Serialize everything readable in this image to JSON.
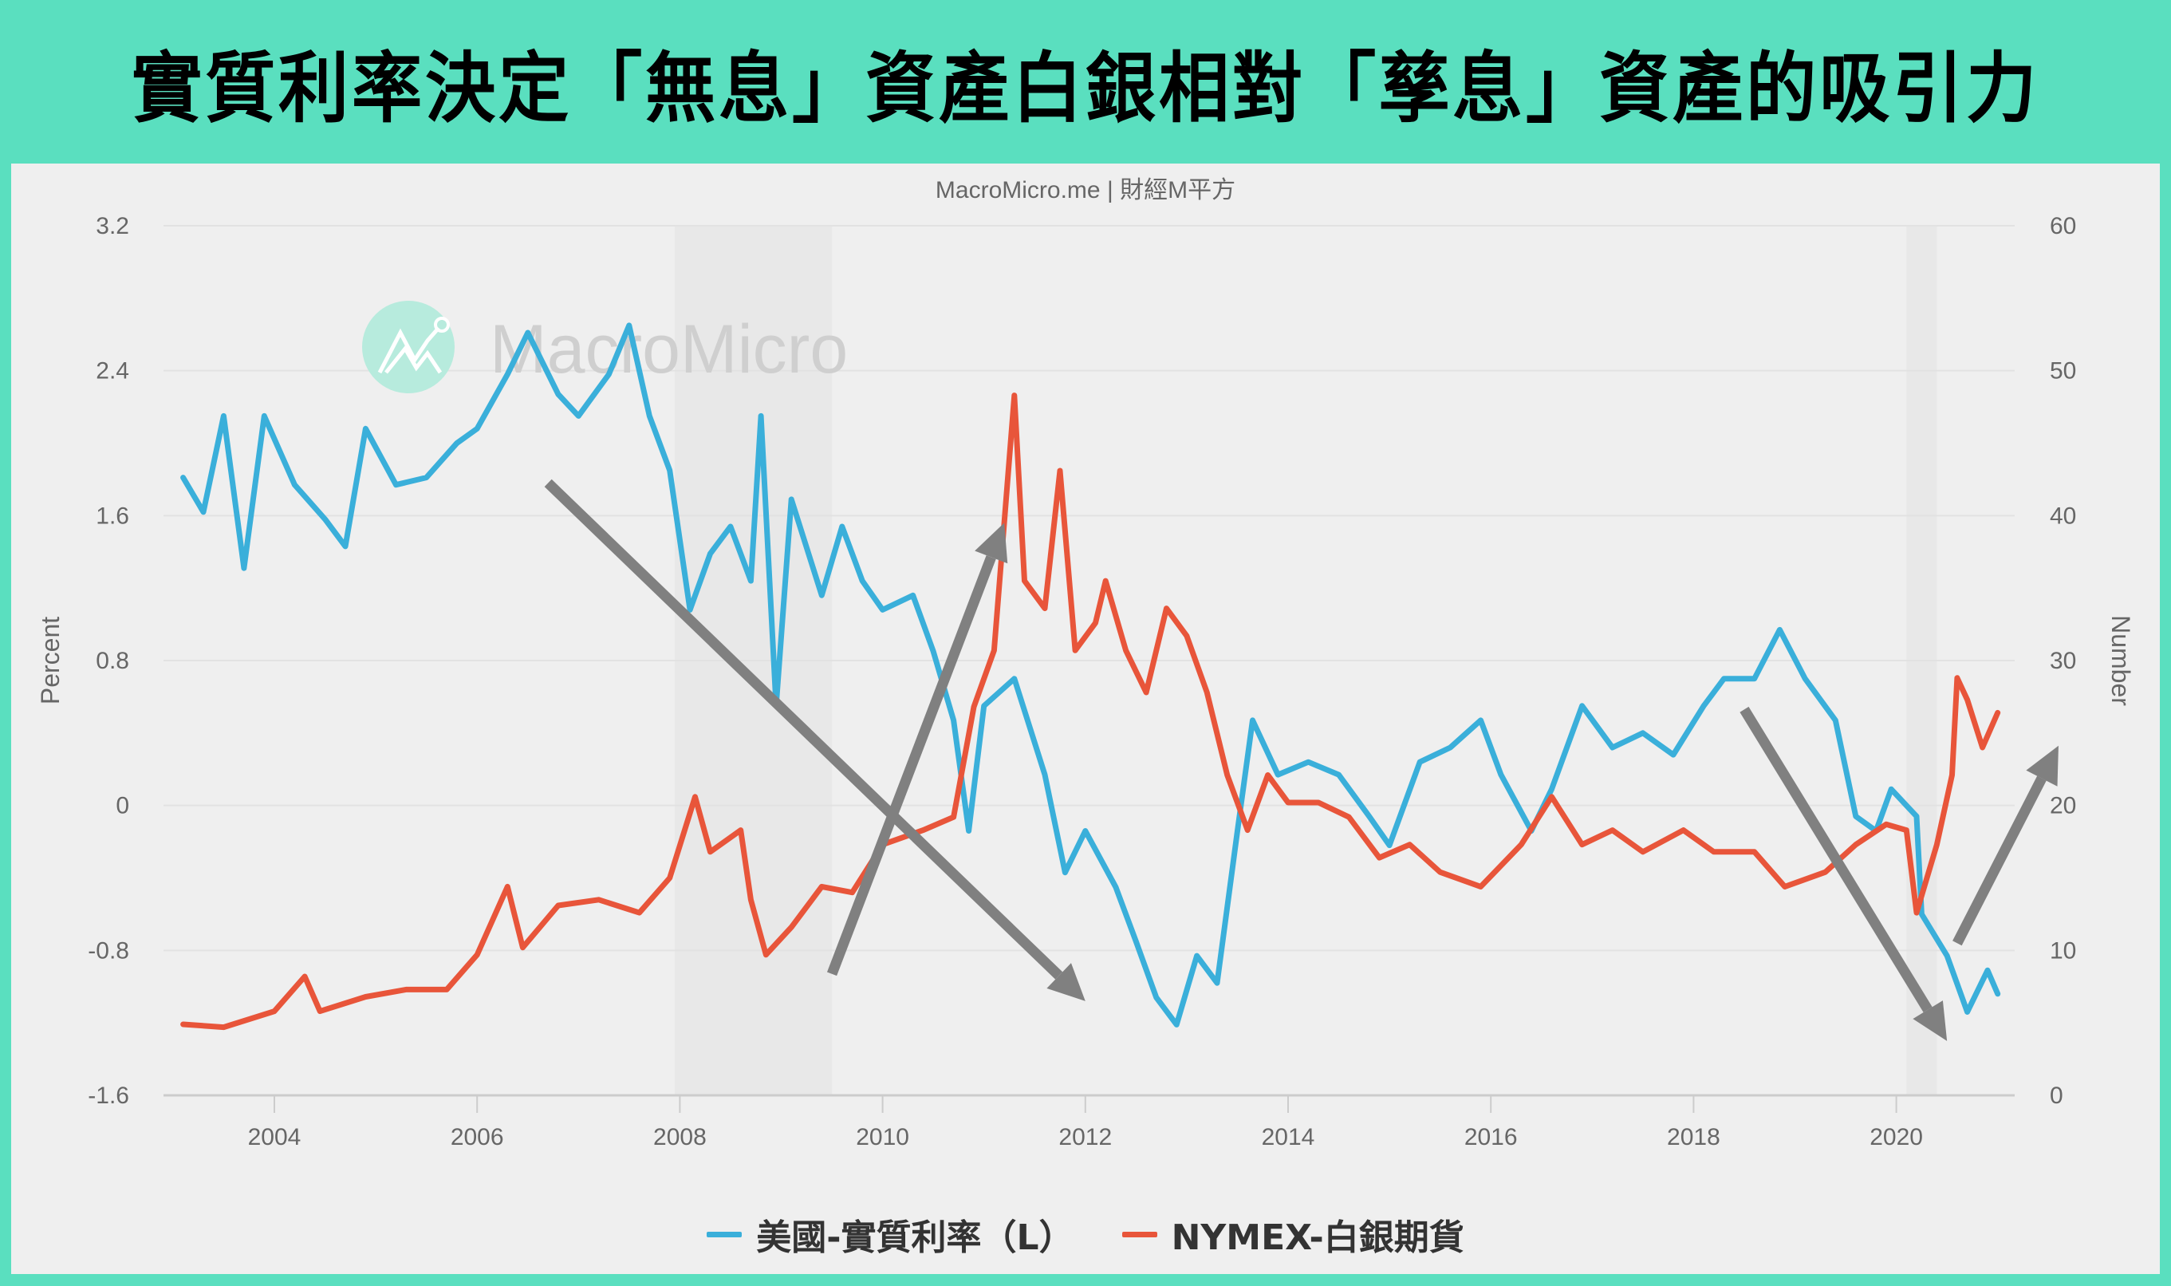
{
  "header": {
    "title": "實質利率決定「無息」資產白銀相對「孳息」資產的吸引力",
    "background_color": "#5ADFBF"
  },
  "chart": {
    "source": "MacroMicro.me | 財經M平方",
    "watermark": "MacroMicro"
  },
  "chart_data": {
    "type": "line",
    "title": "實質利率決定「無息」資產白銀相對「孳息」資產的吸引力",
    "subtitle": "MacroMicro.me | 財經M平方",
    "xlabel": "",
    "ylabel_left": "Percent",
    "ylabel_right": "Number",
    "x_ticks": [
      "2004",
      "2006",
      "2008",
      "2010",
      "2012",
      "2014",
      "2016",
      "2018",
      "2020"
    ],
    "y_left_ticks": [
      "3.2",
      "2.4",
      "1.6",
      "0.8",
      "0",
      "-0.8",
      "-1.6"
    ],
    "y_right_ticks": [
      "60",
      "50",
      "40",
      "30",
      "20",
      "10",
      "0"
    ],
    "ylim_left": [
      -1.6,
      3.2
    ],
    "ylim_right": [
      0,
      60
    ],
    "xlim": [
      2003.0,
      2021.2
    ],
    "grid": true,
    "legend_position": "bottom",
    "shaded_periods": [
      [
        2007.95,
        2009.5
      ],
      [
        2020.1,
        2020.4
      ]
    ],
    "series": [
      {
        "name": "美國-實質利率（L）",
        "axis": "left",
        "color": "#3AAFDA",
        "x": [
          2003.1,
          2003.3,
          2003.5,
          2003.7,
          2003.9,
          2004.2,
          2004.5,
          2004.7,
          2004.9,
          2005.2,
          2005.5,
          2005.8,
          2006.0,
          2006.3,
          2006.5,
          2006.8,
          2007.0,
          2007.3,
          2007.5,
          2007.7,
          2007.9,
          2008.1,
          2008.3,
          2008.5,
          2008.7,
          2008.8,
          2008.95,
          2009.1,
          2009.4,
          2009.6,
          2009.8,
          2010.0,
          2010.3,
          2010.5,
          2010.7,
          2010.85,
          2011.0,
          2011.3,
          2011.6,
          2011.8,
          2012.0,
          2012.3,
          2012.5,
          2012.7,
          2012.9,
          2013.1,
          2013.3,
          2013.5,
          2013.65,
          2013.9,
          2014.2,
          2014.5,
          2014.8,
          2015.0,
          2015.3,
          2015.6,
          2015.9,
          2016.1,
          2016.4,
          2016.6,
          2016.9,
          2017.2,
          2017.5,
          2017.8,
          2018.1,
          2018.3,
          2018.6,
          2018.85,
          2019.1,
          2019.4,
          2019.6,
          2019.8,
          2019.95,
          2020.2,
          2020.25,
          2020.5,
          2020.7,
          2020.9,
          2021.0
        ],
        "values": [
          1.81,
          1.62,
          2.15,
          1.31,
          2.15,
          1.77,
          1.58,
          1.43,
          2.08,
          1.77,
          1.81,
          2.0,
          2.08,
          2.38,
          2.61,
          2.27,
          2.15,
          2.38,
          2.65,
          2.15,
          1.85,
          1.08,
          1.39,
          1.54,
          1.24,
          2.15,
          0.55,
          1.69,
          1.16,
          1.54,
          1.24,
          1.08,
          1.16,
          0.85,
          0.47,
          -0.14,
          0.55,
          0.7,
          0.17,
          -0.37,
          -0.14,
          -0.45,
          -0.75,
          -1.06,
          -1.21,
          -0.83,
          -0.98,
          -0.14,
          0.47,
          0.17,
          0.24,
          0.17,
          -0.06,
          -0.22,
          0.24,
          0.32,
          0.47,
          0.17,
          -0.14,
          0.09,
          0.55,
          0.32,
          0.4,
          0.28,
          0.55,
          0.7,
          0.7,
          0.97,
          0.7,
          0.47,
          -0.06,
          -0.14,
          0.09,
          -0.06,
          -0.6,
          -0.83,
          -1.14,
          -0.91,
          -1.04
        ]
      },
      {
        "name": "NYMEX-白銀期貨",
        "axis": "right",
        "color": "#E8553A",
        "x": [
          2003.1,
          2003.5,
          2004.0,
          2004.3,
          2004.45,
          2004.9,
          2005.3,
          2005.7,
          2006.0,
          2006.3,
          2006.45,
          2006.8,
          2007.2,
          2007.6,
          2007.9,
          2008.15,
          2008.3,
          2008.6,
          2008.7,
          2008.85,
          2009.1,
          2009.4,
          2009.7,
          2010.0,
          2010.4,
          2010.7,
          2010.9,
          2011.1,
          2011.3,
          2011.4,
          2011.6,
          2011.75,
          2011.9,
          2012.1,
          2012.2,
          2012.4,
          2012.6,
          2012.8,
          2013.0,
          2013.2,
          2013.4,
          2013.6,
          2013.8,
          2014.0,
          2014.3,
          2014.6,
          2014.9,
          2015.2,
          2015.5,
          2015.9,
          2016.3,
          2016.6,
          2016.9,
          2017.2,
          2017.5,
          2017.9,
          2018.2,
          2018.6,
          2018.9,
          2019.3,
          2019.6,
          2019.9,
          2020.1,
          2020.2,
          2020.4,
          2020.55,
          2020.6,
          2020.7,
          2020.85,
          2021.0
        ],
        "values": [
          4.9,
          4.7,
          5.8,
          8.2,
          5.8,
          6.8,
          7.3,
          7.3,
          9.7,
          14.4,
          10.2,
          13.1,
          13.5,
          12.6,
          15.0,
          20.6,
          16.8,
          18.3,
          13.5,
          9.7,
          11.6,
          14.4,
          14.0,
          17.3,
          18.3,
          19.2,
          26.8,
          30.7,
          48.3,
          35.5,
          33.6,
          43.1,
          30.7,
          32.6,
          35.5,
          30.7,
          27.8,
          33.6,
          31.7,
          27.8,
          22.1,
          18.3,
          22.1,
          20.2,
          20.2,
          19.2,
          16.4,
          17.3,
          15.4,
          14.4,
          17.3,
          20.6,
          17.3,
          18.3,
          16.8,
          18.3,
          16.8,
          16.8,
          14.4,
          15.4,
          17.3,
          18.7,
          18.3,
          12.6,
          17.3,
          22.1,
          28.8,
          27.3,
          24.0,
          26.4
        ]
      }
    ],
    "annotations": [
      {
        "type": "arrow",
        "color": "#808080",
        "from": [
          2006.7,
          1.78
        ],
        "to": [
          2012.0,
          -1.08
        ],
        "meaning": "real rate falls"
      },
      {
        "type": "arrow",
        "color": "#808080",
        "from": [
          2009.5,
          -0.93
        ],
        "to": [
          2011.2,
          1.56
        ],
        "meaning": "silver rises"
      },
      {
        "type": "arrow",
        "color": "#808080",
        "from": [
          2018.5,
          0.53
        ],
        "to": [
          2020.5,
          -1.3
        ],
        "meaning": "real rate falls"
      },
      {
        "type": "arrow",
        "color": "#808080",
        "from": [
          2020.6,
          -0.76
        ],
        "to": [
          2021.6,
          0.33
        ],
        "meaning": "silver rises"
      }
    ]
  },
  "legend": {
    "items": [
      {
        "label": "美國-實質利率（L）",
        "color": "#3AAFDA"
      },
      {
        "label": "NYMEX-白銀期貨",
        "color": "#E8553A"
      }
    ]
  }
}
